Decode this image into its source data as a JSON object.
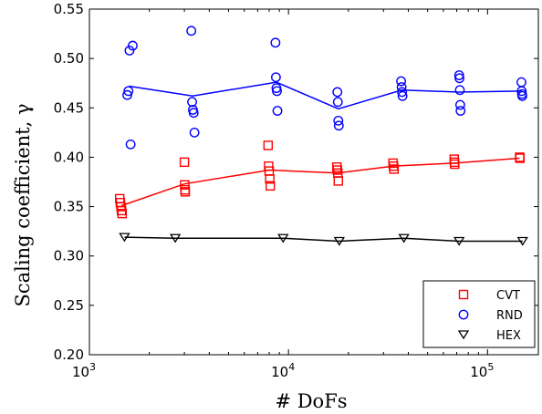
{
  "chart_data": {
    "type": "scatter",
    "xlabel": "# DoFs",
    "ylabel": "Scaling coefficient, γ",
    "xscale": "log",
    "xlim": [
      1000,
      180000
    ],
    "ylim": [
      0.2,
      0.55
    ],
    "yticks": [
      "0.20",
      "0.25",
      "0.30",
      "0.35",
      "0.40",
      "0.45",
      "0.50",
      "0.55"
    ],
    "xticks": [
      {
        "base": "10",
        "exp": "3",
        "value": 1000
      },
      {
        "base": "10",
        "exp": "4",
        "value": 10000
      },
      {
        "base": "10",
        "exp": "5",
        "value": 100000
      }
    ],
    "grid": false,
    "legend_position": "bottom-right",
    "series": [
      {
        "name": "CVT",
        "color": "#ff0000",
        "marker": "square",
        "points": [
          [
            1420,
            0.358
          ],
          [
            1430,
            0.354
          ],
          [
            1440,
            0.35
          ],
          [
            1450,
            0.346
          ],
          [
            1460,
            0.343
          ],
          [
            3000,
            0.395
          ],
          [
            3010,
            0.372
          ],
          [
            3020,
            0.367
          ],
          [
            3030,
            0.365
          ],
          [
            7900,
            0.412
          ],
          [
            7950,
            0.391
          ],
          [
            8000,
            0.386
          ],
          [
            8050,
            0.378
          ],
          [
            8100,
            0.371
          ],
          [
            17500,
            0.39
          ],
          [
            17600,
            0.387
          ],
          [
            17700,
            0.384
          ],
          [
            17800,
            0.376
          ],
          [
            33500,
            0.394
          ],
          [
            33700,
            0.391
          ],
          [
            33900,
            0.388
          ],
          [
            68000,
            0.398
          ],
          [
            68200,
            0.395
          ],
          [
            68400,
            0.393
          ],
          [
            145000,
            0.4
          ],
          [
            145500,
            0.399
          ]
        ],
        "line": [
          [
            1450,
            0.351
          ],
          [
            3000,
            0.373
          ],
          [
            8000,
            0.387
          ],
          [
            17700,
            0.384
          ],
          [
            33700,
            0.391
          ],
          [
            68200,
            0.394
          ],
          [
            145000,
            0.399
          ]
        ]
      },
      {
        "name": "RND",
        "color": "#0000ff",
        "marker": "circle",
        "points": [
          [
            1550,
            0.463
          ],
          [
            1570,
            0.467
          ],
          [
            1590,
            0.508
          ],
          [
            1610,
            0.413
          ],
          [
            1650,
            0.513
          ],
          [
            3250,
            0.528
          ],
          [
            3280,
            0.456
          ],
          [
            3310,
            0.448
          ],
          [
            3340,
            0.445
          ],
          [
            3370,
            0.425
          ],
          [
            8600,
            0.516
          ],
          [
            8650,
            0.481
          ],
          [
            8700,
            0.47
          ],
          [
            8750,
            0.467
          ],
          [
            8800,
            0.447
          ],
          [
            17600,
            0.466
          ],
          [
            17700,
            0.456
          ],
          [
            17800,
            0.437
          ],
          [
            17900,
            0.432
          ],
          [
            36800,
            0.477
          ],
          [
            37000,
            0.471
          ],
          [
            37200,
            0.466
          ],
          [
            37400,
            0.462
          ],
          [
            72000,
            0.483
          ],
          [
            72300,
            0.48
          ],
          [
            72600,
            0.468
          ],
          [
            72900,
            0.453
          ],
          [
            73200,
            0.447
          ],
          [
            148000,
            0.476
          ],
          [
            148500,
            0.467
          ],
          [
            149000,
            0.464
          ],
          [
            149500,
            0.462
          ]
        ],
        "line": [
          [
            1580,
            0.472
          ],
          [
            3300,
            0.462
          ],
          [
            8700,
            0.476
          ],
          [
            17800,
            0.449
          ],
          [
            37100,
            0.468
          ],
          [
            72600,
            0.466
          ],
          [
            148500,
            0.467
          ]
        ]
      },
      {
        "name": "HEX",
        "color": "#000000",
        "marker": "triangle-down",
        "points": [
          [
            1500,
            0.319
          ],
          [
            2700,
            0.318
          ],
          [
            9400,
            0.318
          ],
          [
            18000,
            0.315
          ],
          [
            38000,
            0.318
          ],
          [
            72000,
            0.315
          ],
          [
            150000,
            0.315
          ]
        ],
        "line": [
          [
            1500,
            0.319
          ],
          [
            2700,
            0.318
          ],
          [
            9400,
            0.318
          ],
          [
            18000,
            0.315
          ],
          [
            38000,
            0.318
          ],
          [
            72000,
            0.315
          ],
          [
            150000,
            0.315
          ]
        ]
      }
    ]
  }
}
